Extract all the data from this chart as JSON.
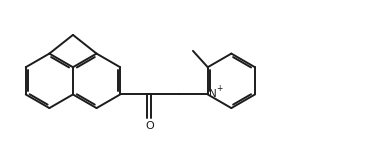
{
  "bg_color": "#ffffff",
  "line_color": "#1c1c1c",
  "line_width": 1.4,
  "figsize": [
    3.79,
    1.5
  ],
  "dpi": 100,
  "xlim": [
    0,
    10
  ],
  "ylim": [
    0,
    4
  ],
  "atoms": {
    "N_label": "N",
    "O_label": "O",
    "plus_label": "+"
  }
}
